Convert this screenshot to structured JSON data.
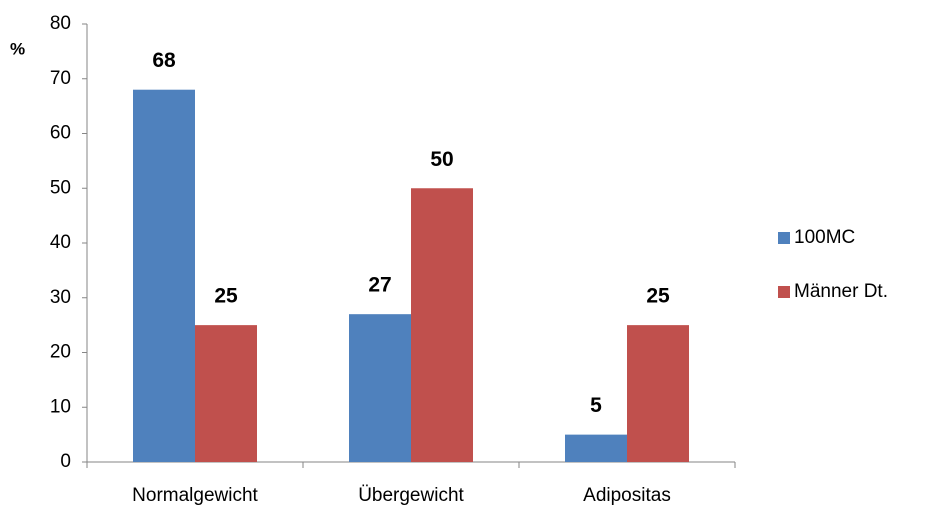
{
  "chart_data": {
    "type": "bar",
    "y_axis_label": "%",
    "categories": [
      "Normalgewicht",
      "Übergewicht",
      "Adipositas"
    ],
    "series": [
      {
        "name": "100MC",
        "color": "#4f81bd",
        "values": [
          68,
          27,
          5
        ]
      },
      {
        "name": "Männer Dt.",
        "color": "#c0504d",
        "values": [
          25,
          50,
          25
        ]
      }
    ],
    "ylim": [
      0,
      80
    ],
    "yticks": [
      0,
      10,
      20,
      30,
      40,
      50,
      60,
      70,
      80
    ],
    "grid": false,
    "legend": "right"
  }
}
